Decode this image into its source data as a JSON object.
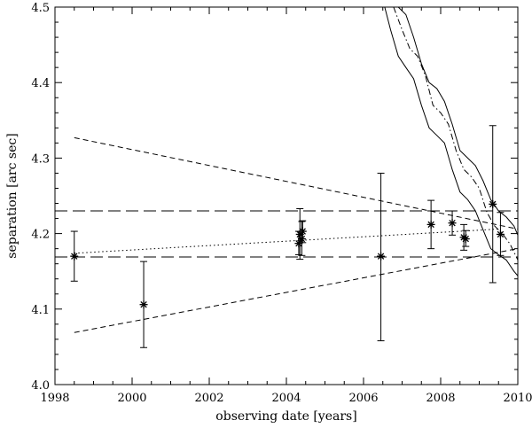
{
  "chart_data": {
    "type": "scatter",
    "title": "",
    "xlabel": "observing date [years]",
    "ylabel": "separation [arc sec]",
    "xlim": [
      1998,
      2010
    ],
    "ylim": [
      4.0,
      4.5
    ],
    "xticks": [
      1998,
      2000,
      2002,
      2004,
      2006,
      2008,
      2010
    ],
    "xtick_labels": [
      "1998",
      "2000",
      "2002",
      "2004",
      "2006",
      "2008",
      "2010"
    ],
    "yticks": [
      4.0,
      4.1,
      4.2,
      4.3,
      4.4,
      4.5
    ],
    "ytick_labels": [
      "4.0",
      "4.1",
      "4.2",
      "4.3",
      "4.4",
      "4.5"
    ],
    "grid": false,
    "measurements": [
      {
        "x": 1998.5,
        "y": 4.17,
        "ylo": 4.137,
        "yhi": 4.203
      },
      {
        "x": 2000.3,
        "y": 4.106,
        "ylo": 4.049,
        "yhi": 4.163
      },
      {
        "x": 2004.35,
        "y": 4.199,
        "ylo": 4.166,
        "yhi": 4.233
      },
      {
        "x": 2004.4,
        "y": 4.193,
        "ylo": 4.171,
        "yhi": 4.216
      },
      {
        "x": 2004.32,
        "y": 4.187,
        "ylo": 4.172,
        "yhi": 4.203
      },
      {
        "x": 2004.42,
        "y": 4.203,
        "ylo": 4.188,
        "yhi": 4.217
      },
      {
        "x": 2006.45,
        "y": 4.17,
        "ylo": 4.058,
        "yhi": 4.28
      },
      {
        "x": 2007.75,
        "y": 4.212,
        "ylo": 4.18,
        "yhi": 4.244
      },
      {
        "x": 2008.3,
        "y": 4.214,
        "ylo": 4.198,
        "yhi": 4.23
      },
      {
        "x": 2008.6,
        "y": 4.195,
        "ylo": 4.178,
        "yhi": 4.212
      },
      {
        "x": 2008.65,
        "y": 4.193,
        "ylo": 4.183,
        "yhi": 4.204
      },
      {
        "x": 2009.35,
        "y": 4.239,
        "ylo": 4.135,
        "yhi": 4.343
      },
      {
        "x": 2009.55,
        "y": 4.199,
        "ylo": 4.171,
        "yhi": 4.228
      }
    ],
    "series": [
      {
        "style": "dotted",
        "points": [
          [
            1998.5,
            4.174
          ],
          [
            2009.5,
            4.206
          ]
        ]
      },
      {
        "style": "long-dash",
        "points": [
          [
            1998,
            4.23
          ],
          [
            2010,
            4.23
          ]
        ]
      },
      {
        "style": "long-dash",
        "points": [
          [
            1998,
            4.169
          ],
          [
            2010,
            4.169
          ]
        ]
      },
      {
        "style": "short-dash",
        "points": [
          [
            1998.5,
            4.327
          ],
          [
            2010,
            4.206
          ]
        ]
      },
      {
        "style": "short-dash",
        "points": [
          [
            1998.5,
            4.069
          ],
          [
            2010,
            4.18
          ]
        ]
      },
      {
        "style": "dash-dot",
        "points": [
          [
            2006.78,
            4.5
          ],
          [
            2007.0,
            4.47
          ],
          [
            2007.2,
            4.445
          ],
          [
            2007.4,
            4.435
          ],
          [
            2007.6,
            4.41
          ],
          [
            2007.8,
            4.37
          ],
          [
            2008.0,
            4.36
          ],
          [
            2008.2,
            4.345
          ],
          [
            2008.4,
            4.31
          ],
          [
            2008.6,
            4.285
          ],
          [
            2008.8,
            4.275
          ],
          [
            2009.0,
            4.26
          ],
          [
            2009.2,
            4.228
          ],
          [
            2009.4,
            4.21
          ],
          [
            2009.6,
            4.2
          ],
          [
            2009.8,
            4.186
          ],
          [
            2010.0,
            4.165
          ]
        ]
      },
      {
        "style": "solid",
        "points": [
          [
            2006.9,
            4.5
          ],
          [
            2007.1,
            4.49
          ],
          [
            2007.3,
            4.46
          ],
          [
            2007.5,
            4.425
          ],
          [
            2007.7,
            4.4
          ],
          [
            2007.9,
            4.392
          ],
          [
            2008.1,
            4.375
          ],
          [
            2008.3,
            4.345
          ],
          [
            2008.5,
            4.31
          ],
          [
            2008.7,
            4.3
          ],
          [
            2008.9,
            4.29
          ],
          [
            2009.1,
            4.27
          ],
          [
            2009.3,
            4.245
          ],
          [
            2009.5,
            4.23
          ],
          [
            2009.7,
            4.222
          ],
          [
            2009.9,
            4.21
          ],
          [
            2010.0,
            4.198
          ]
        ]
      },
      {
        "style": "solid",
        "points": [
          [
            2006.55,
            4.5
          ],
          [
            2006.7,
            4.47
          ],
          [
            2006.9,
            4.435
          ],
          [
            2007.1,
            4.42
          ],
          [
            2007.3,
            4.405
          ],
          [
            2007.5,
            4.37
          ],
          [
            2007.7,
            4.34
          ],
          [
            2007.9,
            4.33
          ],
          [
            2008.1,
            4.32
          ],
          [
            2008.3,
            4.285
          ],
          [
            2008.5,
            4.255
          ],
          [
            2008.7,
            4.245
          ],
          [
            2008.9,
            4.23
          ],
          [
            2009.1,
            4.205
          ],
          [
            2009.3,
            4.18
          ],
          [
            2009.5,
            4.172
          ],
          [
            2009.7,
            4.165
          ],
          [
            2009.9,
            4.15
          ],
          [
            2010.0,
            4.144
          ]
        ]
      }
    ]
  }
}
